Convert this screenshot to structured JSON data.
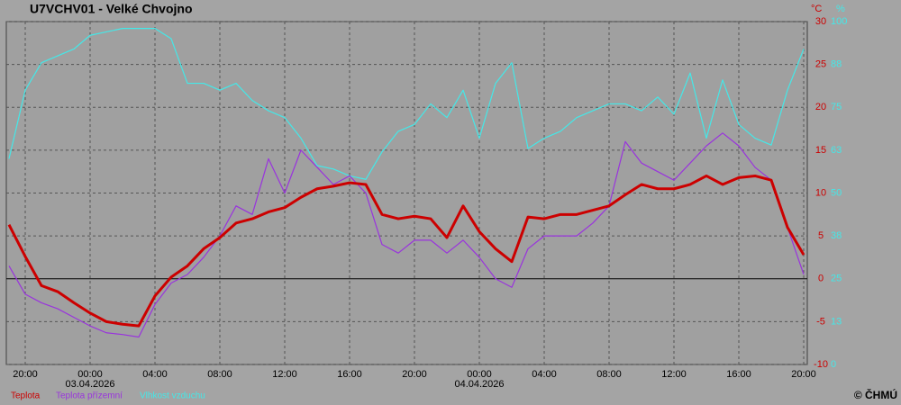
{
  "chart_data": {
    "type": "line",
    "title": "U7VCHV01 - Velké Chvojno",
    "y_unit": "°C",
    "y2_unit": "%",
    "credit": "© ČHMÚ",
    "categories": [
      null,
      "20:00",
      null,
      null,
      null,
      "00:00",
      null,
      null,
      null,
      "04:00",
      null,
      null,
      null,
      "08:00",
      null,
      null,
      null,
      "12:00",
      null,
      null,
      null,
      "16:00",
      null,
      null,
      null,
      "20:00",
      null,
      null,
      null,
      "00:00",
      null,
      null,
      null,
      "04:00",
      null,
      null,
      null,
      "08:00",
      null,
      null,
      null,
      "12:00",
      null,
      null,
      null,
      "16:00",
      null,
      null,
      null,
      "20:00"
    ],
    "date_labels": [
      null,
      null,
      null,
      null,
      null,
      "03.04.2026",
      null,
      null,
      null,
      null,
      null,
      null,
      null,
      null,
      null,
      null,
      null,
      null,
      null,
      null,
      null,
      null,
      null,
      null,
      null,
      null,
      null,
      null,
      null,
      "04.04.2026",
      null,
      null,
      null,
      null,
      null,
      null,
      null,
      null,
      null,
      null,
      null,
      null,
      null,
      null,
      null,
      null,
      null,
      null,
      null,
      null
    ],
    "ylim": [
      -10,
      30
    ],
    "yticks": [
      -10,
      -5,
      0,
      5,
      10,
      15,
      20,
      25,
      30
    ],
    "y2lim": [
      0,
      100
    ],
    "y2ticks": [
      0,
      {
        "value": 12.5,
        "label": "13"
      },
      25,
      {
        "value": 37.5,
        "label": "38"
      },
      50,
      {
        "value": 62.5,
        "label": "63"
      },
      75,
      {
        "value": 87.5,
        "label": "88"
      },
      100
    ],
    "grid": true,
    "series": [
      {
        "name": "Teplota",
        "color": "#cc0000",
        "values": [
          6.3,
          2.6,
          -0.8,
          -1.5,
          -2.8,
          -4.0,
          -5.0,
          -5.3,
          -5.5,
          -2.0,
          0.2,
          1.5,
          3.5,
          4.8,
          6.5,
          7.0,
          7.8,
          8.3,
          9.5,
          10.5,
          10.8,
          11.2,
          11.0,
          7.5,
          7.0,
          7.3,
          7.0,
          4.8,
          8.5,
          5.5,
          3.5,
          2.0,
          7.2,
          7.0,
          7.5,
          7.5,
          8.0,
          8.5,
          9.8,
          11.0,
          10.5,
          10.5,
          11.0,
          12.0,
          11.0,
          11.8,
          12.0,
          11.5,
          6.0,
          2.8
        ]
      },
      {
        "name": "Teplota přízemní",
        "color": "#9933dd",
        "values": [
          1.5,
          -1.8,
          -2.8,
          -3.5,
          -4.5,
          -5.5,
          -6.3,
          -6.5,
          -6.8,
          -3.0,
          -0.5,
          0.5,
          2.5,
          5.0,
          8.5,
          7.5,
          14.0,
          10.0,
          15.0,
          13.0,
          11.0,
          12.0,
          10.0,
          4.0,
          3.0,
          4.5,
          4.5,
          3.0,
          4.5,
          2.5,
          0.0,
          -1.0,
          3.5,
          5.0,
          5.0,
          5.0,
          6.5,
          8.5,
          16.0,
          13.5,
          12.5,
          11.5,
          13.5,
          15.5,
          17.0,
          15.5,
          13.0,
          11.5,
          6.0,
          0.5
        ]
      },
      {
        "name": "Vlhkost vzduchu",
        "color": "#44e8e8",
        "axis": "y2",
        "values": [
          60,
          80,
          88,
          90,
          92,
          96,
          97,
          98,
          98,
          98,
          95,
          82,
          82,
          80,
          82,
          77,
          74,
          72,
          66,
          58,
          57,
          55,
          54,
          62,
          68,
          70,
          76,
          72,
          80,
          66,
          82,
          88,
          63,
          66,
          68,
          72,
          74,
          76,
          76,
          74,
          78,
          73,
          85,
          66,
          83,
          70,
          66,
          64,
          80,
          92
        ]
      }
    ]
  }
}
